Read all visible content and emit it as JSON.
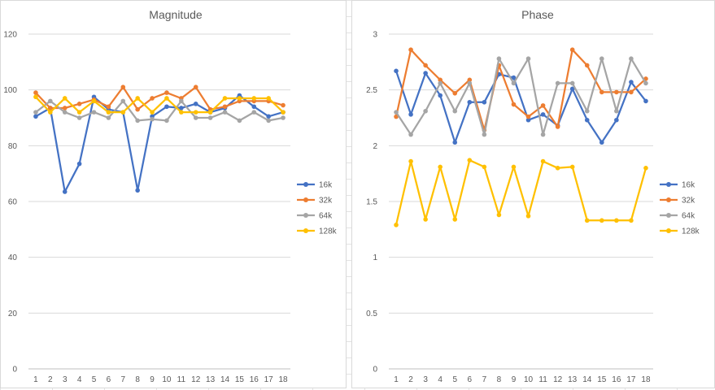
{
  "chart_data": [
    {
      "type": "line",
      "title": "Magnitude",
      "xlabel": "",
      "ylabel": "",
      "x": [
        1,
        2,
        3,
        4,
        5,
        6,
        7,
        8,
        9,
        10,
        11,
        12,
        13,
        14,
        15,
        16,
        17,
        18
      ],
      "ylim": [
        0,
        120
      ],
      "yticks": [
        0,
        20,
        40,
        60,
        80,
        100,
        120
      ],
      "yticklabels": [
        "0",
        "20",
        "40",
        "60",
        "80",
        "100",
        "120"
      ],
      "grid": true,
      "legend_position": "right",
      "series": [
        {
          "name": "16k",
          "color": "#4472C4",
          "values": [
            90.5,
            93.5,
            63.5,
            73.5,
            97.5,
            93,
            92,
            64,
            90.5,
            94,
            93.5,
            95,
            92,
            93.5,
            98,
            94,
            90.5,
            92
          ]
        },
        {
          "name": "32k",
          "color": "#ED7D31",
          "values": [
            99,
            93.5,
            93.5,
            95,
            96.5,
            94,
            101,
            93,
            97,
            99,
            97,
            101,
            93,
            94,
            96,
            96,
            96,
            94.5
          ]
        },
        {
          "name": "64k",
          "color": "#A5A5A5",
          "values": [
            92,
            96,
            92,
            90,
            92,
            90,
            96,
            89,
            89.5,
            89,
            96,
            90,
            90,
            92,
            89,
            92,
            89,
            90
          ]
        },
        {
          "name": "128k",
          "color": "#FFC000",
          "values": [
            97.5,
            92,
            97,
            92,
            96,
            92,
            92,
            97,
            92,
            97,
            92,
            92,
            92,
            97,
            97,
            97,
            97,
            92
          ]
        }
      ]
    },
    {
      "type": "line",
      "title": "Phase",
      "xlabel": "",
      "ylabel": "",
      "x": [
        1,
        2,
        3,
        4,
        5,
        6,
        7,
        8,
        9,
        10,
        11,
        12,
        13,
        14,
        15,
        16,
        17,
        18
      ],
      "ylim": [
        0,
        3
      ],
      "yticks": [
        0,
        0.5,
        1,
        1.5,
        2,
        2.5,
        3
      ],
      "yticklabels": [
        "0",
        "0.5",
        "1",
        "1.5",
        "2",
        "2.5",
        "3"
      ],
      "grid": true,
      "legend_position": "right",
      "series": [
        {
          "name": "16k",
          "color": "#4472C4",
          "values": [
            2.67,
            2.28,
            2.65,
            2.45,
            2.03,
            2.39,
            2.39,
            2.64,
            2.61,
            2.23,
            2.28,
            2.18,
            2.51,
            2.23,
            2.03,
            2.23,
            2.57,
            2.4
          ]
        },
        {
          "name": "32k",
          "color": "#ED7D31",
          "values": [
            2.26,
            2.86,
            2.72,
            2.59,
            2.47,
            2.59,
            2.14,
            2.72,
            2.37,
            2.26,
            2.36,
            2.17,
            2.86,
            2.72,
            2.48,
            2.48,
            2.48,
            2.6
          ]
        },
        {
          "name": "64k",
          "color": "#A5A5A5",
          "values": [
            2.3,
            2.1,
            2.31,
            2.56,
            2.31,
            2.56,
            2.1,
            2.78,
            2.56,
            2.78,
            2.1,
            2.56,
            2.56,
            2.31,
            2.78,
            2.31,
            2.78,
            2.56
          ]
        },
        {
          "name": "128k",
          "color": "#FFC000",
          "values": [
            1.29,
            1.86,
            1.34,
            1.81,
            1.34,
            1.87,
            1.81,
            1.38,
            1.81,
            1.37,
            1.86,
            1.8,
            1.81,
            1.33,
            1.33,
            1.33,
            1.33,
            1.8
          ]
        }
      ]
    }
  ]
}
